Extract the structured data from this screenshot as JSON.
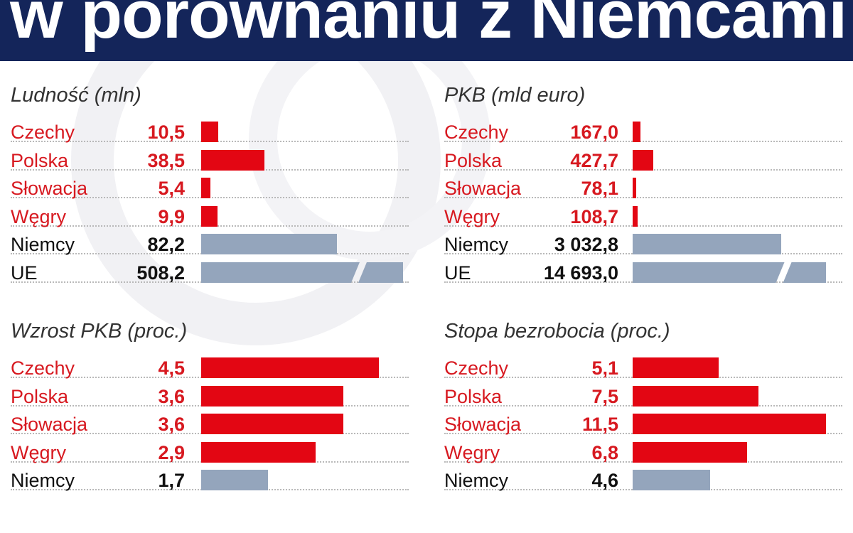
{
  "header": {
    "title": "w porównaniu z Niemcami i UE"
  },
  "colors": {
    "header_bg": "#14255a",
    "highlight": "#e30613",
    "reference": "#94a5bc"
  },
  "chart_data": [
    {
      "type": "bar",
      "title": "Ludność (mln)",
      "categories": [
        "Czechy",
        "Polska",
        "Słowacja",
        "Węgry",
        "Niemcy",
        "UE"
      ],
      "values": [
        10.5,
        38.5,
        5.4,
        9.9,
        82.2,
        508.2
      ],
      "value_labels": [
        "10,5",
        "38,5",
        "5,4",
        "9,9",
        "82,2",
        "508,2"
      ],
      "highlight": [
        true,
        true,
        true,
        true,
        false,
        false
      ],
      "broken_bar_index": 5
    },
    {
      "type": "bar",
      "title": "PKB (mld euro)",
      "categories": [
        "Czechy",
        "Polska",
        "Słowacja",
        "Węgry",
        "Niemcy",
        "UE"
      ],
      "values": [
        167.0,
        427.7,
        78.1,
        108.7,
        3032.8,
        14693.0
      ],
      "value_labels": [
        "167,0",
        "427,7",
        "78,1",
        "108,7",
        "3 032,8",
        "14 693,0"
      ],
      "highlight": [
        true,
        true,
        true,
        true,
        false,
        false
      ],
      "broken_bar_index": 5
    },
    {
      "type": "bar",
      "title": "Wzrost PKB (proc.)",
      "categories": [
        "Czechy",
        "Polska",
        "Słowacja",
        "Węgry",
        "Niemcy"
      ],
      "values": [
        4.5,
        3.6,
        3.6,
        2.9,
        1.7
      ],
      "value_labels": [
        "4,5",
        "3,6",
        "3,6",
        "2,9",
        "1,7"
      ],
      "highlight": [
        true,
        true,
        true,
        true,
        false
      ]
    },
    {
      "type": "bar",
      "title": "Stopa bezrobocia (proc.)",
      "categories": [
        "Czechy",
        "Polska",
        "Słowacja",
        "Węgry",
        "Niemcy"
      ],
      "values": [
        5.1,
        7.5,
        11.5,
        6.8,
        4.6
      ],
      "value_labels": [
        "5,1",
        "7,5",
        "11,5",
        "6,8",
        "4,6"
      ],
      "highlight": [
        true,
        true,
        true,
        true,
        false
      ]
    }
  ]
}
